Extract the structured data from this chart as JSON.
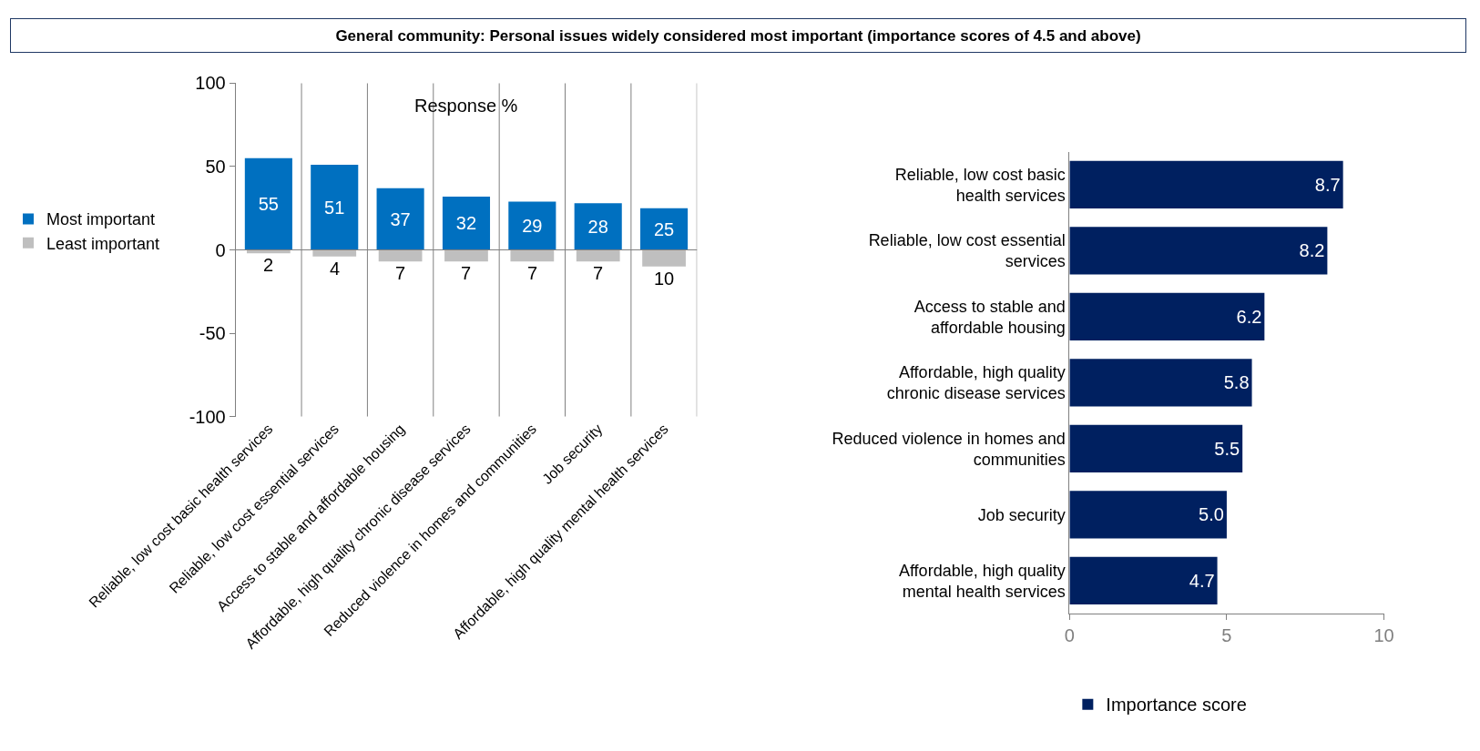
{
  "chart_data": [
    {
      "type": "bar",
      "title": "General community: Personal issues widely considered most important (importance scores of 4.5 and above)",
      "categories": [
        "Reliable, low cost basic health services",
        "Reliable, low cost essential services",
        "Access to stable and affordable housing",
        "Affordable, high quality chronic disease services",
        "Reduced violence in homes and communities",
        "Job security",
        "Affordable, high quality mental health services"
      ],
      "series": [
        {
          "name": "Most important",
          "color": "#0070c0",
          "values": [
            55,
            51,
            37,
            32,
            29,
            28,
            25
          ],
          "value_labels": [
            "55",
            "51",
            "37",
            "32",
            "29",
            "28",
            "25"
          ]
        },
        {
          "name": "Least important",
          "color": "#bfbfbf",
          "values": [
            2,
            4,
            7,
            7,
            7,
            7,
            10
          ],
          "base": [
            -2,
            -4,
            -7,
            -7,
            -7,
            -7,
            -10
          ],
          "value_labels": [
            "2",
            "4",
            "7",
            "7",
            "7",
            "7",
            "10"
          ]
        }
      ],
      "ref_lines": [
        {
          "axis": "y",
          "value": 0,
          "color": "#808080"
        }
      ],
      "ylim": [
        -100,
        100
      ],
      "yticks": [
        -100,
        -50,
        0,
        50,
        100
      ],
      "grid": "x",
      "legend": "left",
      "annotations": [
        "Response %"
      ]
    },
    {
      "type": "bar",
      "orientation": "horizontal",
      "categories": [
        "Reliable, low cost basic health services",
        "Reliable, low cost essential services",
        "Access to stable and affordable housing",
        "Affordable, high quality chronic disease services",
        "Reduced violence in homes and communities",
        "Job security",
        "Affordable, high quality mental health services"
      ],
      "series": [
        {
          "name": "Importance score",
          "color": "#002060",
          "values": [
            8.7,
            8.2,
            6.2,
            5.8,
            5.5,
            5.0,
            4.7
          ],
          "value_labels": [
            "8.7",
            "8.2",
            "6.2",
            "5.8",
            "5.5",
            "5.0",
            "4.7"
          ]
        }
      ],
      "xlim": [
        0,
        10
      ],
      "xticks": [
        0,
        5,
        10
      ],
      "legend": "bottom"
    }
  ]
}
